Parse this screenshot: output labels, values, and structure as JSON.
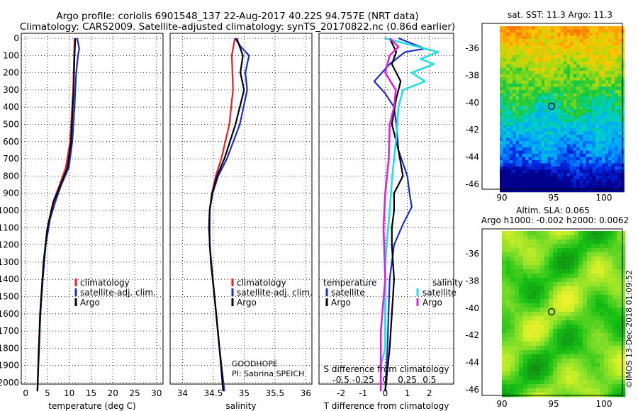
{
  "header": {
    "title_line1": "Argo profile: coriolis 6901548_137 22-Aug-2017 40.22S 94.757E (NRT data)",
    "title_line2": "Climatology: CARS2009. Satellite-adjusted climatology: synTS_20170822.nc (0.86d earlier)"
  },
  "colors": {
    "climatology": "#e82020",
    "satellite": "#1a2bd0",
    "argo": "#000000",
    "t_satellite": "#1a2bd0",
    "t_argo": "#000000",
    "s_satellite": "#20e0e0",
    "s_argo": "#e020e0"
  },
  "chart_data": [
    {
      "id": "temperature",
      "type": "line",
      "xlabel": "temperature (deg C)",
      "ylabel": "",
      "xlim": [
        -1,
        31.5
      ],
      "ylim": [
        2080,
        0
      ],
      "xticks": [
        "0",
        "5",
        "10",
        "15",
        "20",
        "25",
        "30"
      ],
      "yticks": [
        "0",
        "100",
        "200",
        "300",
        "400",
        "500",
        "600",
        "700",
        "800",
        "900",
        "1000",
        "1100",
        "1200",
        "1300",
        "1400",
        "1500",
        "1600",
        "1700",
        "1800",
        "1900",
        "2000"
      ],
      "legend": [
        "climatology",
        "satellite-adj. clim.",
        "Argo"
      ],
      "series": [
        {
          "name": "climatology",
          "depth": [
            0,
            100,
            300,
            600,
            750,
            850,
            950,
            1100,
            1300,
            1600,
            2050
          ],
          "values": [
            11.2,
            11.1,
            10.9,
            10.2,
            9.2,
            7.8,
            6.3,
            5.0,
            4.2,
            3.4,
            2.7
          ]
        },
        {
          "name": "satellite-adj. clim.",
          "depth": [
            0,
            60,
            100,
            200,
            400,
            600,
            750,
            850,
            950,
            1050,
            1200,
            1500,
            1800,
            2050
          ],
          "values": [
            11.8,
            12.3,
            12.0,
            11.6,
            11.2,
            10.7,
            9.9,
            8.2,
            6.8,
            5.6,
            4.6,
            3.6,
            3.0,
            2.7
          ]
        },
        {
          "name": "Argo",
          "depth": [
            0,
            100,
            300,
            600,
            750,
            850,
            950,
            1100,
            1300,
            1600,
            2050
          ],
          "values": [
            11.4,
            11.2,
            11.0,
            10.4,
            9.6,
            8.0,
            6.4,
            5.0,
            4.1,
            3.3,
            2.7
          ]
        }
      ]
    },
    {
      "id": "salinity",
      "type": "line",
      "xlabel": "salinity",
      "ylabel": "",
      "xlim": [
        33.8,
        36.1
      ],
      "ylim": [
        2080,
        0
      ],
      "xticks": [
        "34",
        "34.5",
        "35",
        "35.5",
        "36"
      ],
      "legend": [
        "climatology",
        "satellite-adj. clim.",
        "Argo"
      ],
      "annotation": [
        "GOODHOPE",
        "PI: Sabrina SPEICH"
      ],
      "series": [
        {
          "name": "climatology",
          "depth": [
            0,
            100,
            300,
            500,
            700,
            800,
            900,
            1000,
            1200,
            1500,
            1800,
            2050
          ],
          "values": [
            34.85,
            34.8,
            34.82,
            34.76,
            34.63,
            34.54,
            34.48,
            34.44,
            34.44,
            34.52,
            34.6,
            34.68
          ]
        },
        {
          "name": "satellite-adj. clim.",
          "depth": [
            0,
            50,
            100,
            200,
            300,
            500,
            700,
            800,
            900,
            1000,
            1200,
            1500,
            1800,
            2050
          ],
          "values": [
            34.85,
            34.95,
            35.08,
            35.02,
            35.05,
            34.93,
            34.72,
            34.58,
            34.49,
            34.44,
            34.44,
            34.52,
            34.6,
            34.68
          ]
        },
        {
          "name": "Argo",
          "depth": [
            0,
            100,
            200,
            300,
            500,
            700,
            800,
            900,
            1000,
            1100,
            1300,
            1500,
            1800,
            2050
          ],
          "values": [
            34.88,
            34.98,
            34.94,
            35.0,
            34.86,
            34.68,
            34.56,
            34.48,
            34.44,
            34.43,
            34.46,
            34.52,
            34.6,
            34.66
          ]
        }
      ]
    },
    {
      "id": "difference",
      "type": "line",
      "xlabel": "T difference from climatology",
      "xlabel_top": "S difference from climatology",
      "xlim": [
        -3,
        3.1
      ],
      "ylim": [
        2080,
        0
      ],
      "xticks": [
        "-2",
        "-1",
        "0",
        "1",
        "2"
      ],
      "xticks_s": [
        "-0.5",
        "-0.25",
        "0",
        "0.25",
        "0.5"
      ],
      "legend_left_title": "temperature",
      "legend_right_title": "salinity",
      "legend_left": [
        "satellite",
        "Argo"
      ],
      "legend_right": [
        "satellite",
        "Argo"
      ],
      "series": [
        {
          "name": "temperature satellite",
          "depth": [
            0,
            60,
            80,
            100,
            150,
            250,
            320,
            400,
            500,
            650,
            800,
            900,
            980,
            1080,
            1200,
            1400,
            1600,
            1800,
            2050
          ],
          "values": [
            0.6,
            1.8,
            0.9,
            0.7,
            0.2,
            -0.5,
            0.0,
            0.4,
            0.5,
            0.6,
            1.0,
            1.1,
            1.2,
            0.8,
            0.4,
            0.2,
            0.15,
            0.1,
            0.0
          ]
        },
        {
          "name": "temperature Argo",
          "depth": [
            0,
            80,
            150,
            250,
            350,
            500,
            650,
            800,
            900,
            1000,
            1100,
            1200,
            1400,
            1600,
            1800,
            2050
          ],
          "values": [
            0.2,
            0.5,
            0.3,
            0.7,
            0.5,
            0.3,
            0.6,
            0.8,
            0.4,
            0.4,
            0.3,
            0.3,
            0.4,
            0.3,
            0.2,
            0.0
          ]
        },
        {
          "name": "salinity satellite",
          "depth": [
            0,
            40,
            80,
            120,
            150,
            200,
            250,
            300,
            400,
            600,
            800,
            1000,
            1300,
            1600,
            1800,
            1900,
            2050
          ],
          "values": [
            0.0,
            0.3,
            0.6,
            0.4,
            0.55,
            0.3,
            0.45,
            0.2,
            0.15,
            0.12,
            0.08,
            0.05,
            0.0,
            0.0,
            0.0,
            -0.05,
            -0.05
          ]
        },
        {
          "name": "salinity Argo",
          "depth": [
            0,
            50,
            100,
            200,
            300,
            400,
            500,
            700,
            900,
            1100,
            1400,
            1700,
            2050
          ],
          "values": [
            0.05,
            0.15,
            0.05,
            0.0,
            0.12,
            0.1,
            0.05,
            0.04,
            0.0,
            -0.02,
            0.0,
            -0.05,
            -0.05
          ]
        }
      ]
    },
    {
      "id": "sst_map",
      "type": "heatmap",
      "title": "sat. SST: 11.3 Argo: 11.3",
      "xticks": [
        "90",
        "95",
        "100"
      ],
      "yticks": [
        "-36",
        "-38",
        "-40",
        "-42",
        "-44",
        "-46"
      ],
      "marker": {
        "lon": 94.757,
        "lat": -40.22
      }
    },
    {
      "id": "sla_map",
      "type": "heatmap",
      "title": "Altim. SLA: 0.065",
      "subtitle": "Argo h1000: -0.002 h2000: 0.0062",
      "xticks": [
        "90",
        "95",
        "100"
      ],
      "yticks": [
        "-36",
        "-38",
        "-40",
        "-42",
        "-44",
        "-46"
      ],
      "marker": {
        "lon": 94.757,
        "lat": -40.22
      }
    }
  ],
  "footer": {
    "credit": "©IMOS 13-Dec-2018 01:09:52"
  }
}
